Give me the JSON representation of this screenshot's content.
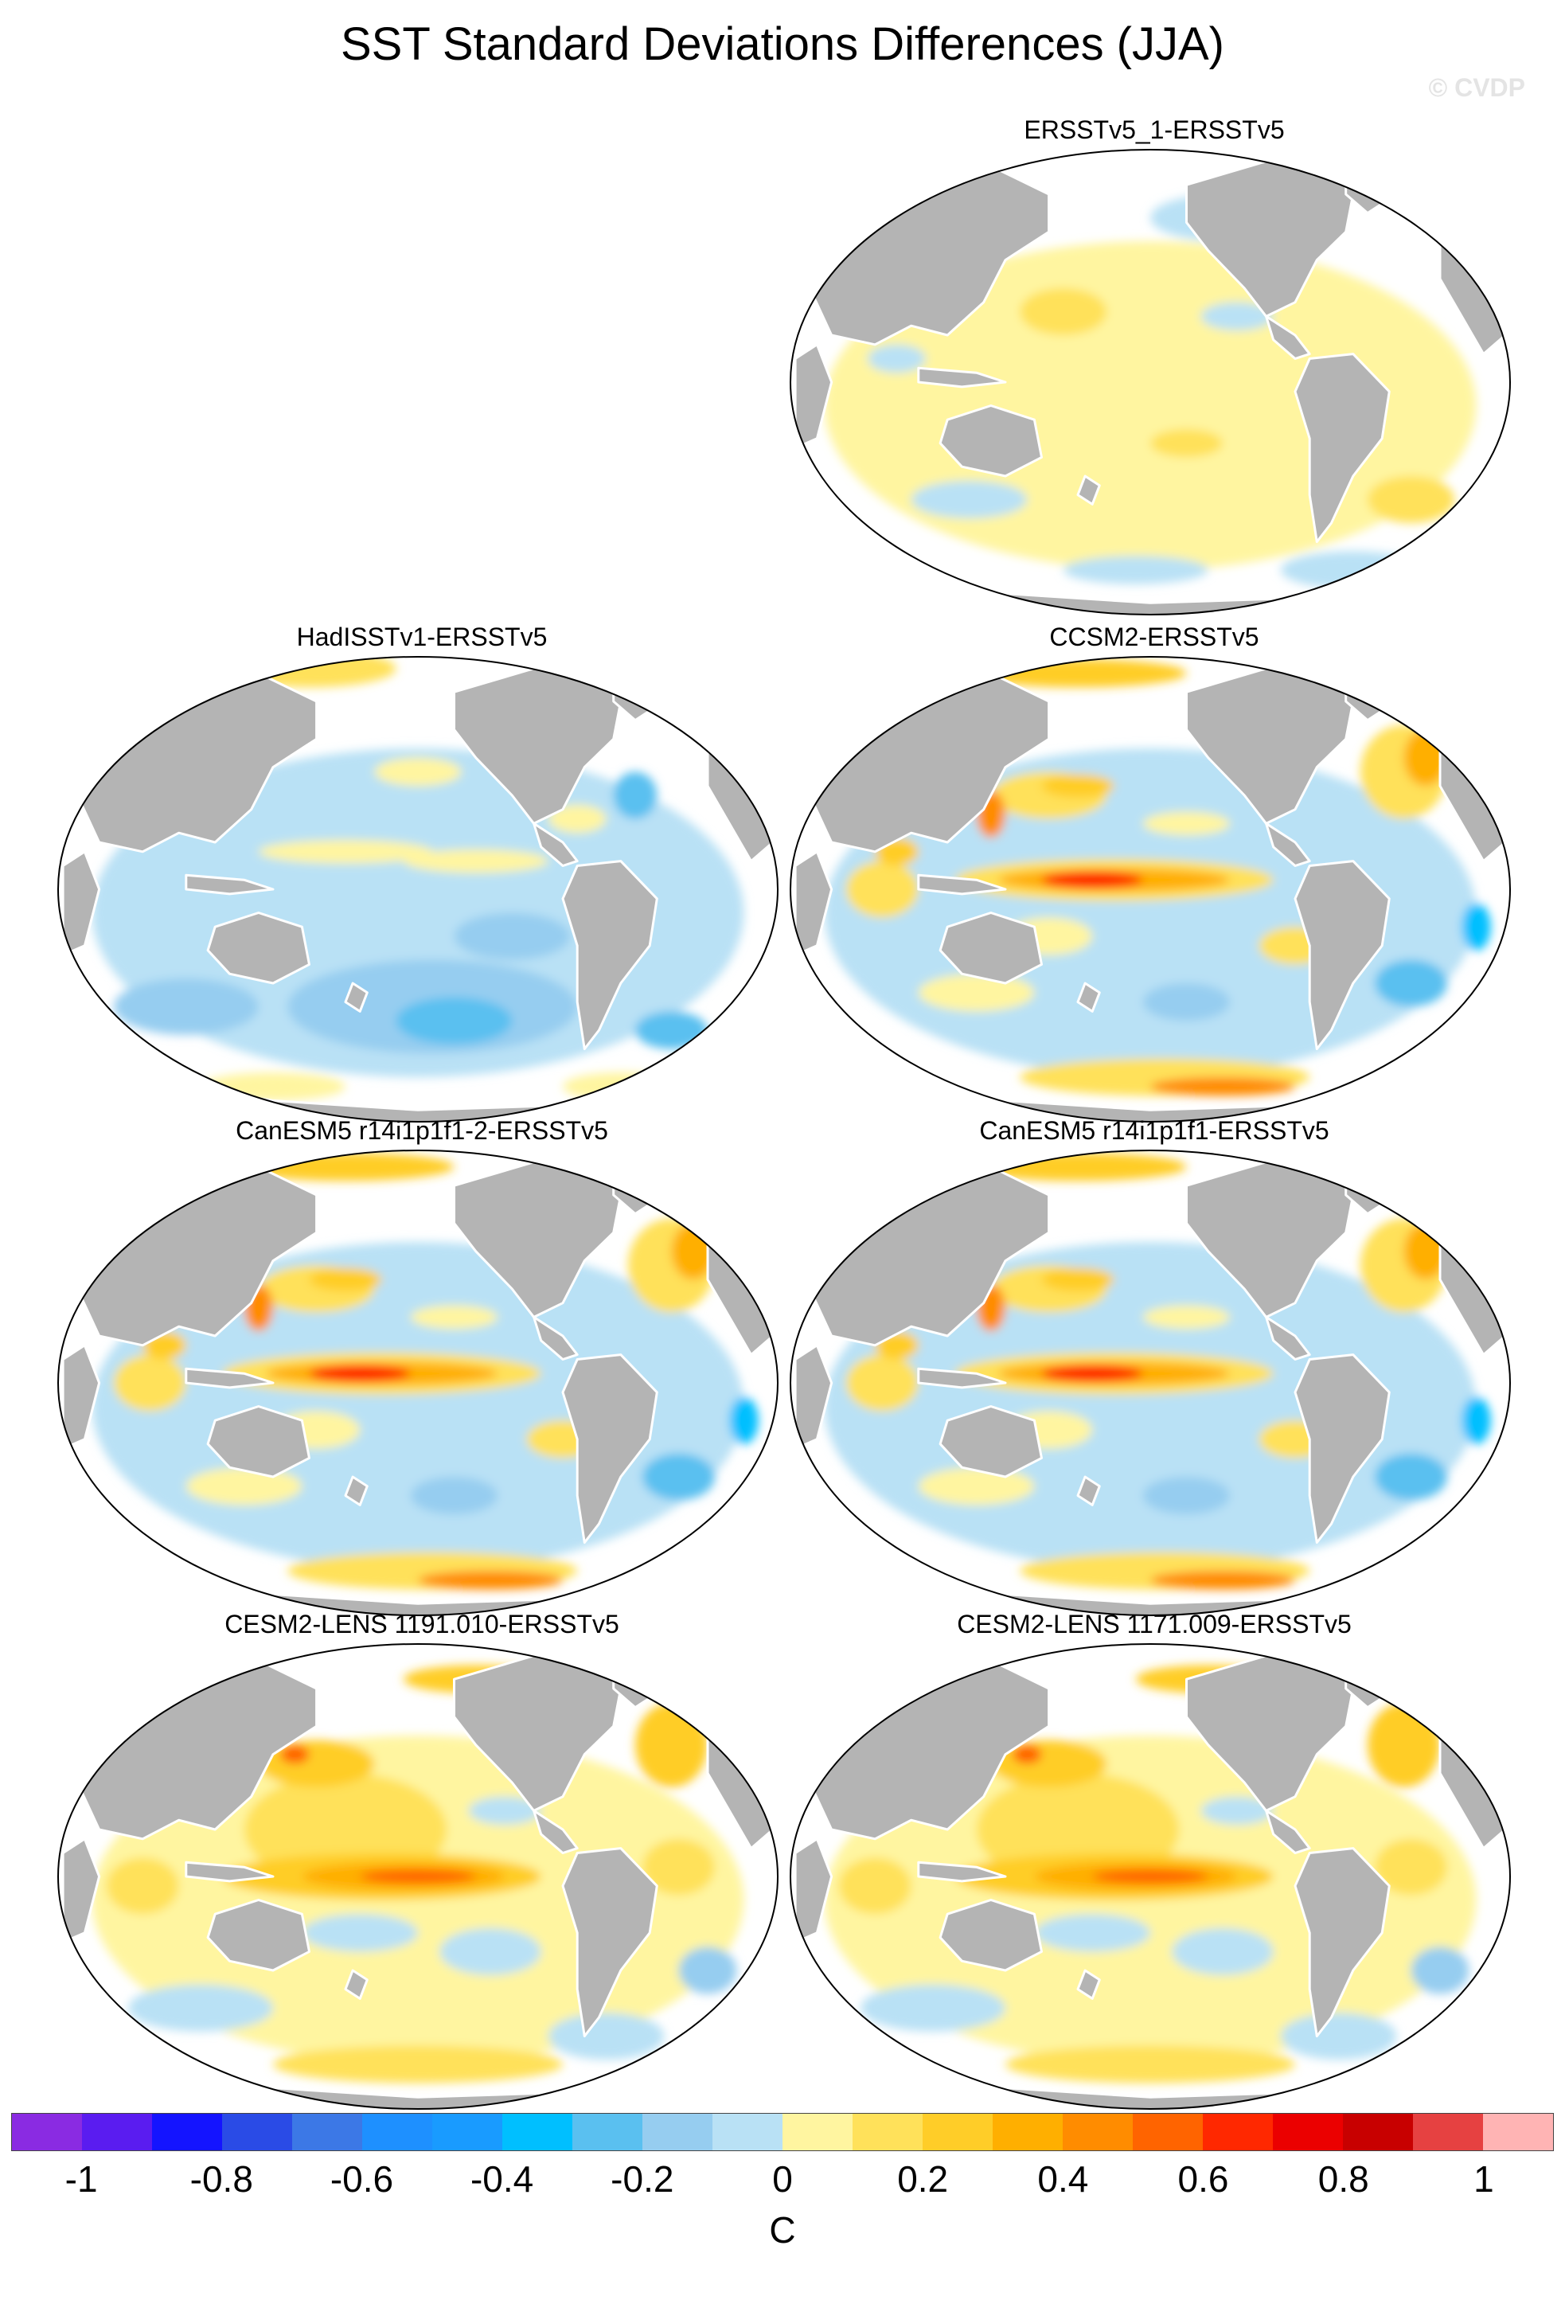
{
  "title": "SST Standard Deviations Differences (JJA)",
  "watermark": "© CVDP",
  "panels": [
    {
      "label": "ERSSTv5_1-ERSSTv5",
      "tone": "weak"
    },
    {
      "label": "HadISSTv1-ERSSTv5",
      "tone": "cool"
    },
    {
      "label": "CCSM2-ERSSTv5",
      "tone": "mixed-warm"
    },
    {
      "label": "CanESM5 r14i1p1f1-2-ERSSTv5",
      "tone": "mixed-warm"
    },
    {
      "label": "CanESM5 r14i1p1f1-ERSSTv5",
      "tone": "mixed-warm"
    },
    {
      "label": "CESM2-LENS 1191.010-ERSSTv5",
      "tone": "warm"
    },
    {
      "label": "CESM2-LENS 1171.009-ERSSTv5",
      "tone": "warm"
    }
  ],
  "colors": {
    "land": "#b4b4b4",
    "coast": "#ffffff",
    "levels": [
      "#8a2be2",
      "#5a1cf0",
      "#1414ff",
      "#2a4be6",
      "#3c78e6",
      "#1e90ff",
      "#199bff",
      "#00bfff",
      "#5ac0f0",
      "#96cdf0",
      "#b9e1f5",
      "#fff5a0",
      "#ffe15a",
      "#ffcd28",
      "#ffaf00",
      "#ff8c00",
      "#ff6400",
      "#ff2800",
      "#eb0000",
      "#c80000",
      "#e64141",
      "#ffb4b4"
    ]
  },
  "colorbar": {
    "ticks": [
      "-1",
      "-0.8",
      "-0.6",
      "-0.4",
      "-0.2",
      "0",
      "0.2",
      "0.4",
      "0.6",
      "0.8",
      "1"
    ],
    "unit": "C"
  }
}
